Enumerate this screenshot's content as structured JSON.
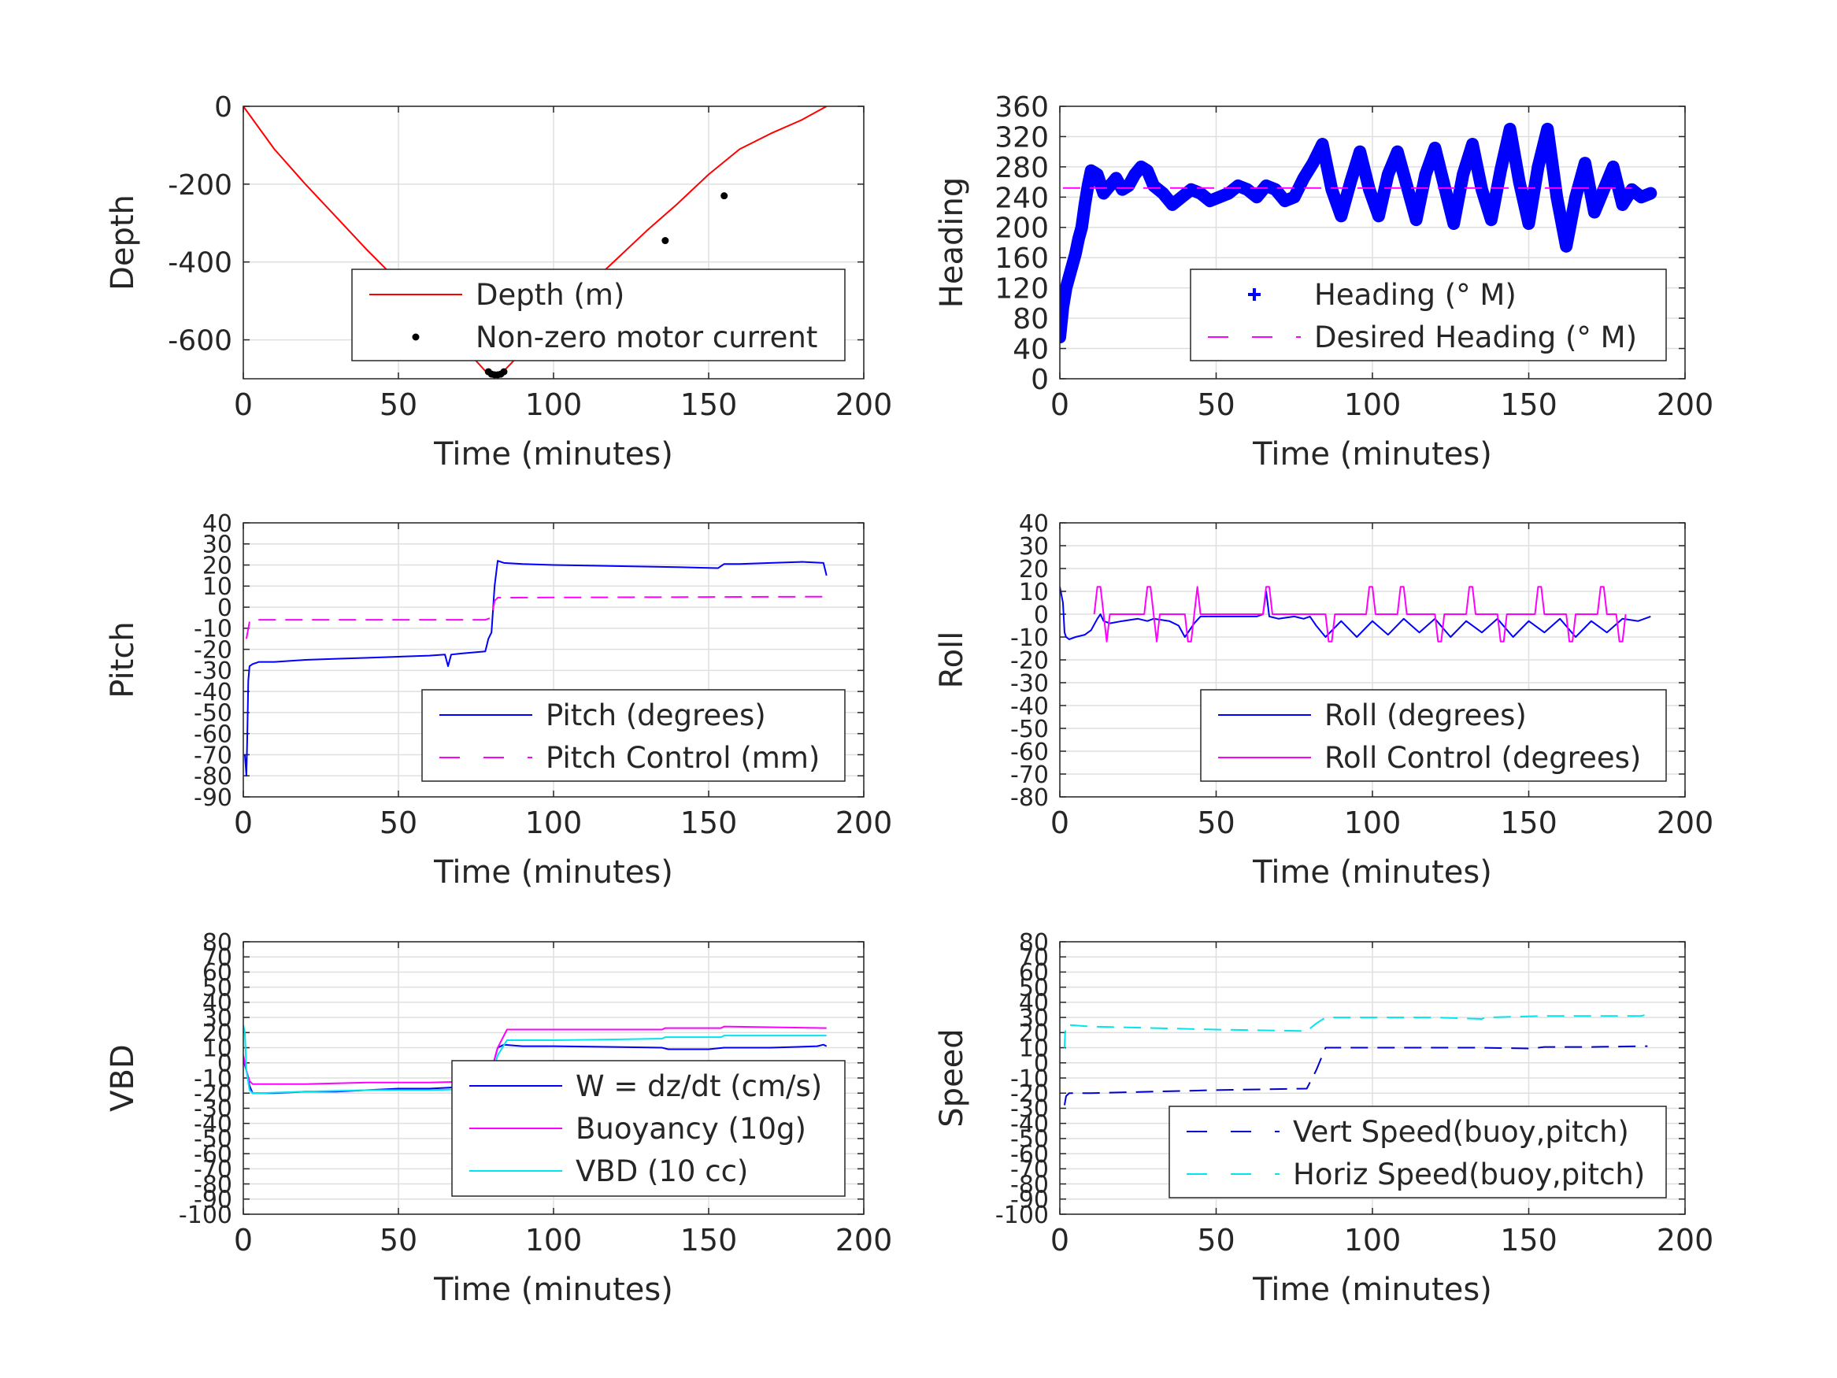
{
  "chart_data": [
    {
      "type": "line",
      "xlabel": "Time (minutes)",
      "ylabel": "Depth",
      "xlim": [
        0,
        200
      ],
      "ylim": [
        -700,
        0
      ],
      "xticks": [
        "0",
        "50",
        "100",
        "150",
        "200"
      ],
      "yticks": [
        "0",
        "-200",
        "-400",
        "-600"
      ],
      "series": [
        {
          "name": "Depth (m)",
          "style": "solid-line",
          "color": "#ff0000",
          "x": [
            0,
            10,
            20,
            30,
            40,
            50,
            60,
            70,
            78,
            81,
            84,
            90,
            100,
            110,
            120,
            130,
            140,
            150,
            160,
            170,
            180,
            188
          ],
          "y": [
            0,
            -110,
            -200,
            -285,
            -370,
            -450,
            -530,
            -610,
            -680,
            -690,
            -680,
            -630,
            -550,
            -470,
            -395,
            -320,
            -250,
            -175,
            -110,
            -70,
            -35,
            0
          ]
        },
        {
          "name": "Non-zero motor current",
          "style": "dots",
          "color": "#000000",
          "x": [
            79,
            80,
            81,
            82,
            83,
            84,
            136,
            155
          ],
          "y": [
            -682,
            -688,
            -690,
            -690,
            -688,
            -682,
            -345,
            -230
          ]
        }
      ],
      "legend": "lower-right"
    },
    {
      "type": "scatter",
      "xlabel": "Time (minutes)",
      "ylabel": "Heading",
      "xlim": [
        0,
        200
      ],
      "ylim": [
        0,
        360
      ],
      "xticks": [
        "0",
        "50",
        "100",
        "150",
        "200"
      ],
      "yticks": [
        "0",
        "40",
        "80",
        "120",
        "160",
        "200",
        "240",
        "280",
        "320",
        "360"
      ],
      "series": [
        {
          "name": "Heading (° M)",
          "style": "plus-markers",
          "color": "#0000ff",
          "x": [
            0,
            1,
            2,
            3,
            4,
            5,
            6,
            7,
            8,
            9,
            10,
            12,
            14,
            16,
            18,
            20,
            22,
            24,
            26,
            28,
            30,
            33,
            36,
            39,
            42,
            45,
            48,
            51,
            54,
            57,
            60,
            63,
            66,
            69,
            72,
            75,
            78,
            81,
            84,
            87,
            90,
            93,
            96,
            99,
            102,
            105,
            108,
            111,
            114,
            117,
            120,
            123,
            126,
            129,
            132,
            135,
            138,
            141,
            144,
            147,
            150,
            153,
            156,
            159,
            162,
            165,
            168,
            171,
            174,
            177,
            180,
            183,
            186,
            189
          ],
          "y": [
            55,
            95,
            120,
            135,
            150,
            165,
            185,
            200,
            230,
            255,
            275,
            270,
            245,
            255,
            265,
            250,
            255,
            270,
            280,
            275,
            255,
            245,
            230,
            240,
            250,
            245,
            235,
            240,
            245,
            255,
            250,
            240,
            255,
            250,
            235,
            240,
            265,
            285,
            310,
            250,
            215,
            260,
            300,
            250,
            215,
            270,
            300,
            255,
            210,
            270,
            305,
            255,
            205,
            270,
            310,
            250,
            210,
            275,
            330,
            260,
            205,
            280,
            330,
            240,
            175,
            240,
            285,
            220,
            250,
            280,
            230,
            250,
            240,
            245
          ]
        },
        {
          "name": "Desired Heading (° M)",
          "style": "dashed-line",
          "color": "#ff00ff",
          "x": [
            1,
            183
          ],
          "y": [
            252,
            252
          ]
        }
      ],
      "legend": "lower-right"
    },
    {
      "type": "line",
      "xlabel": "Time (minutes)",
      "ylabel": "Pitch",
      "xlim": [
        0,
        200
      ],
      "ylim": [
        -90,
        40
      ],
      "xticks": [
        "0",
        "50",
        "100",
        "150",
        "200"
      ],
      "yticks": [
        "40",
        "30",
        "20",
        "10",
        "0",
        "-10",
        "-20",
        "-30",
        "-40",
        "-50",
        "-60",
        "-70",
        "-80",
        "-90"
      ],
      "series": [
        {
          "name": "Pitch (degrees)",
          "style": "solid-line",
          "color": "#0000ff",
          "x": [
            0.5,
            1,
            1.3,
            1.6,
            2,
            3,
            5,
            10,
            20,
            30,
            40,
            50,
            60,
            65,
            66,
            67,
            70,
            78,
            79,
            80,
            81,
            82,
            84,
            90,
            100,
            120,
            140,
            153,
            155,
            160,
            170,
            180,
            187,
            188
          ],
          "y": [
            -70,
            -80,
            -60,
            -35,
            -28,
            -27,
            -26,
            -26,
            -25,
            -24.5,
            -24,
            -23.5,
            -23,
            -22.5,
            -28,
            -22.5,
            -22,
            -21,
            -15,
            -12,
            10,
            22,
            21,
            20.5,
            20,
            19.5,
            19,
            18.5,
            20.5,
            20.5,
            21,
            21.5,
            21,
            15
          ]
        },
        {
          "name": "Pitch Control (mm)",
          "style": "dashed-line",
          "color": "#ff00ff",
          "x": [
            1,
            2,
            3,
            78,
            80,
            81,
            82,
            188
          ],
          "y": [
            -15,
            -7,
            -6,
            -6,
            -5,
            3,
            4.5,
            5
          ]
        }
      ],
      "legend": "lower-right"
    },
    {
      "type": "line",
      "xlabel": "Time (minutes)",
      "ylabel": "Roll",
      "xlim": [
        0,
        200
      ],
      "ylim": [
        -80,
        40
      ],
      "xticks": [
        "0",
        "50",
        "100",
        "150",
        "200"
      ],
      "yticks": [
        "40",
        "30",
        "20",
        "10",
        "0",
        "-10",
        "-20",
        "-30",
        "-40",
        "-50",
        "-60",
        "-70",
        "-80"
      ],
      "series": [
        {
          "name": "Roll (degrees)",
          "style": "solid-line",
          "color": "#0000ff",
          "x": [
            0,
            1,
            1.5,
            2,
            3,
            5,
            8,
            10,
            12,
            13,
            14,
            16,
            20,
            25,
            28,
            30,
            35,
            38,
            40,
            43,
            45,
            50,
            55,
            60,
            63,
            65,
            66,
            67,
            70,
            75,
            78,
            80,
            82,
            85,
            90,
            95,
            100,
            105,
            110,
            115,
            120,
            125,
            130,
            135,
            140,
            145,
            150,
            155,
            160,
            165,
            170,
            175,
            180,
            185,
            189
          ],
          "y": [
            12,
            5,
            -8,
            -10,
            -11,
            -10,
            -9,
            -7,
            -2,
            0,
            -3,
            -4,
            -3,
            -2,
            -3,
            -2,
            -3,
            -5,
            -10,
            -4,
            -1,
            -1,
            -1,
            -1,
            -1,
            0,
            10,
            -1,
            -2,
            -1,
            -2,
            -1,
            -5,
            -10,
            -3,
            -10,
            -3,
            -9,
            -2,
            -8,
            -2,
            -10,
            -3,
            -8,
            -2,
            -10,
            -3,
            -8,
            -2,
            -10,
            -3,
            -8,
            -2,
            -3,
            -1
          ]
        },
        {
          "name": "Roll Control (degrees)",
          "style": "solid-line",
          "color": "#ff00ff",
          "x": [
            11,
            12,
            13,
            14,
            15,
            16,
            27,
            28,
            29,
            30,
            31,
            32,
            40,
            41,
            42,
            43,
            44,
            45,
            65,
            66,
            67,
            68,
            85,
            86,
            87,
            88,
            98,
            99,
            100,
            101,
            108,
            109,
            110,
            111,
            120,
            121,
            122,
            123,
            130,
            131,
            132,
            133,
            140,
            141,
            142,
            143,
            152,
            153,
            154,
            155,
            162,
            163,
            164,
            165,
            172,
            173,
            174,
            175,
            178,
            179,
            180,
            181
          ],
          "y": [
            0,
            12,
            12,
            0,
            -12,
            0,
            0,
            12,
            12,
            0,
            -12,
            0,
            0,
            -12,
            -12,
            0,
            12,
            0,
            0,
            12,
            12,
            0,
            0,
            -12,
            -12,
            0,
            0,
            12,
            12,
            0,
            0,
            12,
            12,
            0,
            0,
            -12,
            -12,
            0,
            0,
            12,
            12,
            0,
            0,
            -12,
            -12,
            0,
            0,
            12,
            12,
            0,
            0,
            -12,
            -12,
            0,
            0,
            12,
            12,
            0,
            0,
            -12,
            -12,
            0
          ]
        }
      ],
      "legend": "lower-right"
    },
    {
      "type": "line",
      "xlabel": "Time (minutes)",
      "ylabel": "VBD",
      "xlim": [
        0,
        200
      ],
      "ylim": [
        -100,
        80
      ],
      "xticks": [
        "0",
        "50",
        "100",
        "150",
        "200"
      ],
      "yticks": [
        "80",
        "70",
        "60",
        "50",
        "40",
        "30",
        "20",
        "10",
        "0",
        "-10",
        "-20",
        "-30",
        "-40",
        "-50",
        "-60",
        "-70",
        "-80",
        "-90",
        "-100"
      ],
      "series": [
        {
          "name": "W = dz/dt (cm/s)",
          "style": "solid-line",
          "color": "#0000ff",
          "x": [
            0,
            1,
            2,
            3,
            5,
            10,
            20,
            30,
            40,
            50,
            60,
            70,
            79,
            80,
            82,
            84,
            90,
            100,
            120,
            135,
            137,
            150,
            155,
            170,
            185,
            187,
            188
          ],
          "y": [
            2,
            -5,
            -15,
            -20,
            -20,
            -20,
            -19,
            -19,
            -18,
            -17,
            -17,
            -16,
            -15,
            -5,
            10,
            12,
            11,
            11,
            10.5,
            10,
            9,
            9,
            10,
            10,
            11,
            12,
            11
          ]
        },
        {
          "name": "Buoyancy (10g)",
          "style": "solid-line",
          "color": "#ff00ff",
          "x": [
            0,
            1,
            2,
            3,
            5,
            20,
            40,
            60,
            79,
            82,
            85,
            100,
            120,
            135,
            136,
            154,
            155,
            188
          ],
          "y": [
            5,
            -5,
            -12,
            -14,
            -14,
            -14,
            -13,
            -13,
            -12,
            10,
            22,
            22,
            22,
            22,
            23,
            23,
            24,
            23
          ]
        },
        {
          "name": "VBD (10 cc)",
          "style": "solid-line",
          "color": "#00e5ee",
          "x": [
            0,
            0.5,
            1,
            2,
            3,
            5,
            20,
            40,
            60,
            79,
            82,
            85,
            100,
            120,
            135,
            136,
            154,
            155,
            188
          ],
          "y": [
            25,
            20,
            -5,
            -18,
            -20,
            -20,
            -19,
            -18,
            -18,
            -17,
            5,
            15,
            15,
            15.5,
            16,
            17,
            17,
            18,
            18
          ]
        }
      ],
      "legend": "lower-right"
    },
    {
      "type": "line",
      "xlabel": "Time (minutes)",
      "ylabel": "Speed",
      "xlim": [
        0,
        200
      ],
      "ylim": [
        -100,
        80
      ],
      "xticks": [
        "0",
        "50",
        "100",
        "150",
        "200"
      ],
      "yticks": [
        "80",
        "70",
        "60",
        "50",
        "40",
        "30",
        "20",
        "10",
        "0",
        "-10",
        "-20",
        "-30",
        "-40",
        "-50",
        "-60",
        "-70",
        "-80",
        "-90",
        "-100"
      ],
      "series": [
        {
          "name": "Vert Speed(buoy,pitch)",
          "style": "dashed-line",
          "color": "#0000cd",
          "x": [
            1.5,
            2,
            3,
            10,
            30,
            50,
            79,
            82,
            85,
            100,
            120,
            135,
            150,
            153,
            155,
            170,
            186,
            188
          ],
          "y": [
            -28,
            -22,
            -20,
            -20,
            -19,
            -18,
            -17,
            -5,
            10,
            10,
            10,
            10,
            9.5,
            10,
            10.5,
            10.5,
            11,
            11
          ]
        },
        {
          "name": "Horiz Speed(buoy,pitch)",
          "style": "dashed-line",
          "color": "#00e5ee",
          "x": [
            1.5,
            1.7,
            2,
            3,
            10,
            30,
            50,
            79,
            82,
            85,
            100,
            120,
            135,
            136,
            155,
            186,
            188
          ],
          "y": [
            10,
            20,
            25,
            25,
            24,
            23,
            22,
            21,
            26,
            30,
            30,
            30,
            29,
            30,
            31,
            31,
            32
          ]
        }
      ],
      "legend": "lower-right"
    }
  ]
}
